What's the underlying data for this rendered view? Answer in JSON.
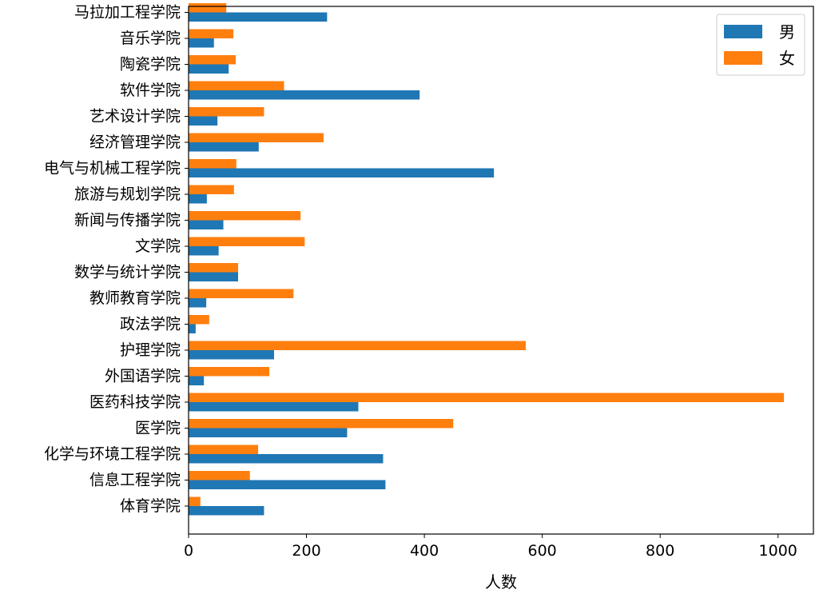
{
  "chart_data": {
    "type": "bar",
    "orientation": "horizontal",
    "categories": [
      "体育学院",
      "信息工程学院",
      "化学与环境工程学院",
      "医学院",
      "医药科技学院",
      "外国语学院",
      "护理学院",
      "政法学院",
      "教师教育学院",
      "数学与统计学院",
      "文学院",
      "新闻与传播学院",
      "旅游与规划学院",
      "电气与机械工程学院",
      "经济管理学院",
      "艺术设计学院",
      "软件学院",
      "陶瓷学院",
      "音乐学院",
      "马拉加工程学院"
    ],
    "series": [
      {
        "name": "男",
        "color": "#1f77b4",
        "values": [
          128,
          334,
          330,
          269,
          288,
          26,
          145,
          12,
          30,
          84,
          51,
          59,
          31,
          518,
          119,
          49,
          392,
          68,
          43,
          235
        ]
      },
      {
        "name": "女",
        "color": "#ff7f0e",
        "values": [
          20,
          104,
          118,
          449,
          1010,
          137,
          572,
          35,
          178,
          84,
          197,
          190,
          77,
          81,
          229,
          128,
          162,
          80,
          76,
          64
        ]
      }
    ],
    "xlabel": "人数",
    "ylabel": "",
    "title": "",
    "xlim": [
      0,
      1060
    ],
    "xticks": [
      0,
      200,
      400,
      600,
      800,
      1000
    ],
    "legend": "top-right",
    "grid": false
  }
}
